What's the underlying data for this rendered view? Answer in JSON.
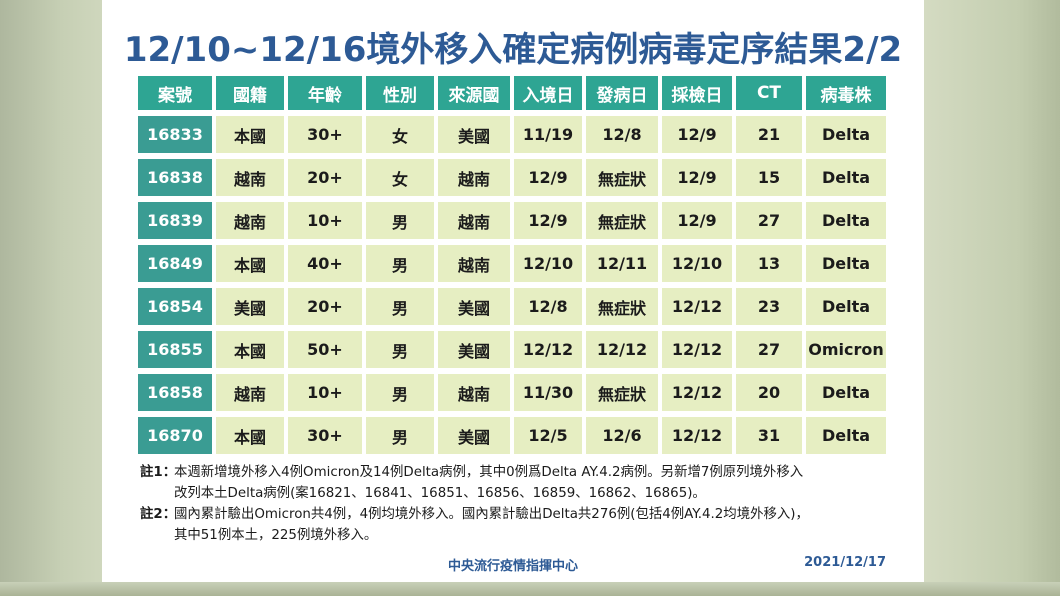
{
  "title": "12/10~12/16境外移入確定病例病毒定序結果2/2",
  "table": {
    "headers": [
      "案號",
      "國籍",
      "年齡",
      "性別",
      "來源國",
      "入境日",
      "發病日",
      "採檢日",
      "CT",
      "病毒株"
    ],
    "rows": [
      [
        "16833",
        "本國",
        "30+",
        "女",
        "美國",
        "11/19",
        "12/8",
        "12/9",
        "21",
        "Delta"
      ],
      [
        "16838",
        "越南",
        "20+",
        "女",
        "越南",
        "12/9",
        "無症狀",
        "12/9",
        "15",
        "Delta"
      ],
      [
        "16839",
        "越南",
        "10+",
        "男",
        "越南",
        "12/9",
        "無症狀",
        "12/9",
        "27",
        "Delta"
      ],
      [
        "16849",
        "本國",
        "40+",
        "男",
        "越南",
        "12/10",
        "12/11",
        "12/10",
        "13",
        "Delta"
      ],
      [
        "16854",
        "美國",
        "20+",
        "男",
        "美國",
        "12/8",
        "無症狀",
        "12/12",
        "23",
        "Delta"
      ],
      [
        "16855",
        "本國",
        "50+",
        "男",
        "美國",
        "12/12",
        "12/12",
        "12/12",
        "27",
        "Omicron"
      ],
      [
        "16858",
        "越南",
        "10+",
        "男",
        "越南",
        "11/30",
        "無症狀",
        "12/12",
        "20",
        "Delta"
      ],
      [
        "16870",
        "本國",
        "30+",
        "男",
        "美國",
        "12/5",
        "12/6",
        "12/12",
        "31",
        "Delta"
      ]
    ]
  },
  "notes": [
    {
      "label": "註1：",
      "line1": "本週新增境外移入4例Omicron及14例Delta病例，其中0例爲Delta AY.4.2病例。另新增7例原列境外移入",
      "line2": "改列本土Delta病例(案16821、16841、16851、16856、16859、16862、16865)。"
    },
    {
      "label": "註2：",
      "line1": "國內累計驗出Omicron共4例，4例均境外移入。國內累計驗出Delta共276例(包括4例AY.4.2均境外移入)，",
      "line2": "其中51例本土，225例境外移入。"
    }
  ],
  "footer": {
    "org": "中央流行疫情指揮中心",
    "date": "2021/12/17"
  },
  "colors": {
    "title": "#2d5a95",
    "header_bg": "#2ea593",
    "case_bg": "#3a9c93",
    "cell_bg": "#e6eec2"
  }
}
